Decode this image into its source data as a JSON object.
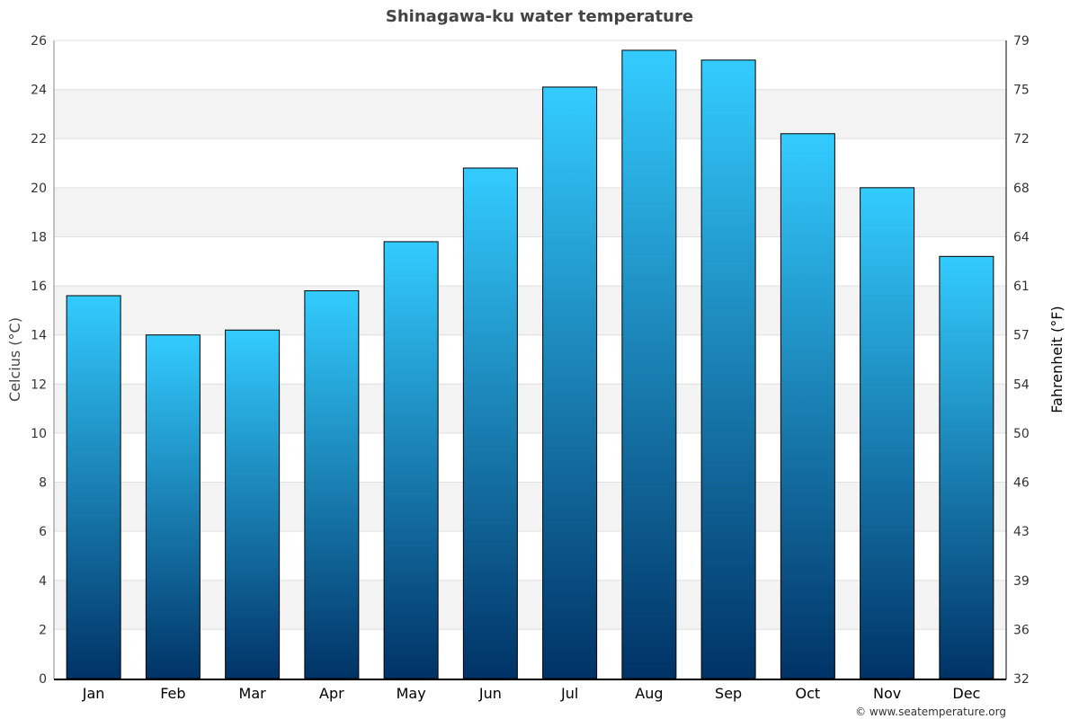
{
  "chart_data": {
    "type": "bar",
    "title": "Shinagawa-ku water temperature",
    "ylabel": "Celcius (°C)",
    "y2label": "Fahrenheit (°F)",
    "categories": [
      "Jan",
      "Feb",
      "Mar",
      "Apr",
      "May",
      "Jun",
      "Jul",
      "Aug",
      "Sep",
      "Oct",
      "Nov",
      "Dec"
    ],
    "values": [
      15.6,
      14.0,
      14.2,
      15.8,
      17.8,
      20.8,
      24.1,
      25.6,
      25.2,
      22.2,
      20.0,
      17.2
    ],
    "ylim": [
      0,
      26
    ],
    "yticks": [
      0,
      2,
      4,
      6,
      8,
      10,
      12,
      14,
      16,
      18,
      20,
      22,
      24,
      26
    ],
    "y2ticks": [
      "32",
      "36",
      "39",
      "43",
      "46",
      "50",
      "54",
      "57",
      "61",
      "64",
      "68",
      "72",
      "75",
      "79"
    ],
    "grid": true,
    "colors": {
      "bar_top": "#33ccff",
      "bar_bottom": "#003366",
      "band": "#f3f3f3",
      "outline": "#000000"
    }
  },
  "credit": "© www.seatemperature.org"
}
